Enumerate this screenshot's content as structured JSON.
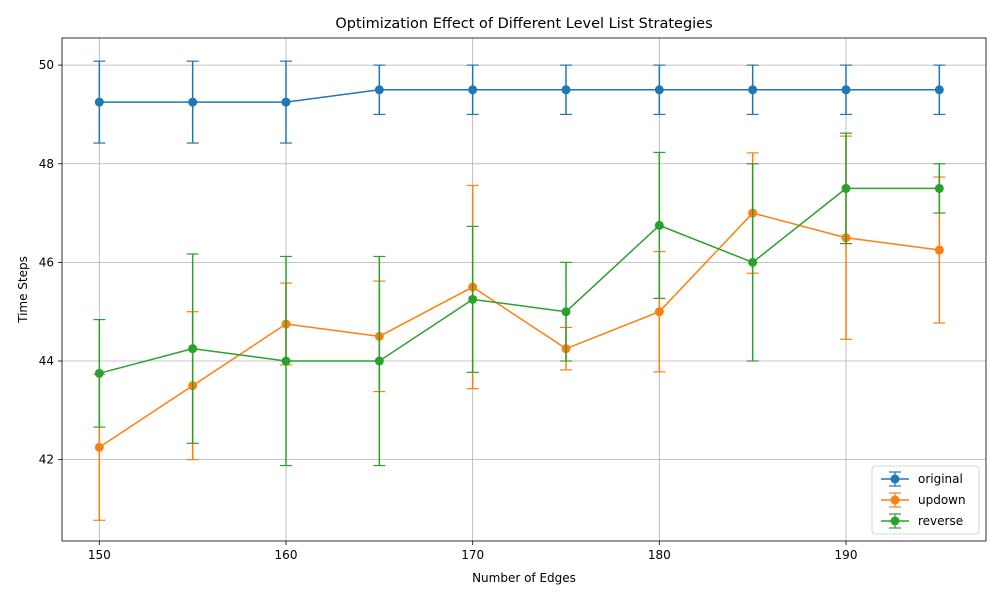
{
  "chart_data": {
    "type": "line",
    "title": "Optimization Effect of Different Level List Strategies",
    "xlabel": "Number of Edges",
    "ylabel": "Time Steps",
    "x": [
      150,
      155,
      160,
      165,
      170,
      175,
      180,
      185,
      190,
      195
    ],
    "xlim": [
      148,
      197.5
    ],
    "ylim": [
      40.35,
      50.55
    ],
    "xticks": [
      150,
      160,
      170,
      180,
      190
    ],
    "yticks": [
      42,
      44,
      46,
      48,
      50
    ],
    "grid": true,
    "legend_position": "lower-right",
    "series": [
      {
        "name": "original",
        "color": "#1f77b4",
        "values": [
          49.25,
          49.25,
          49.25,
          49.5,
          49.5,
          49.5,
          49.5,
          49.5,
          49.5,
          49.5
        ],
        "errors": [
          0.83,
          0.83,
          0.83,
          0.5,
          0.5,
          0.5,
          0.5,
          0.5,
          0.5,
          0.5
        ]
      },
      {
        "name": "updown",
        "color": "#ff7f0e",
        "values": [
          42.25,
          43.5,
          44.75,
          44.5,
          45.5,
          44.25,
          45.0,
          47.0,
          46.5,
          46.25
        ],
        "errors": [
          1.48,
          1.5,
          0.83,
          1.12,
          2.06,
          0.43,
          1.22,
          1.22,
          2.06,
          1.48
        ]
      },
      {
        "name": "reverse",
        "color": "#2ca02c",
        "values": [
          43.75,
          44.25,
          44.0,
          44.0,
          45.25,
          45.0,
          46.75,
          46.0,
          47.5,
          47.5
        ],
        "errors": [
          1.09,
          1.92,
          2.12,
          2.12,
          1.48,
          1.0,
          1.48,
          2.0,
          1.12,
          0.5
        ]
      }
    ]
  }
}
